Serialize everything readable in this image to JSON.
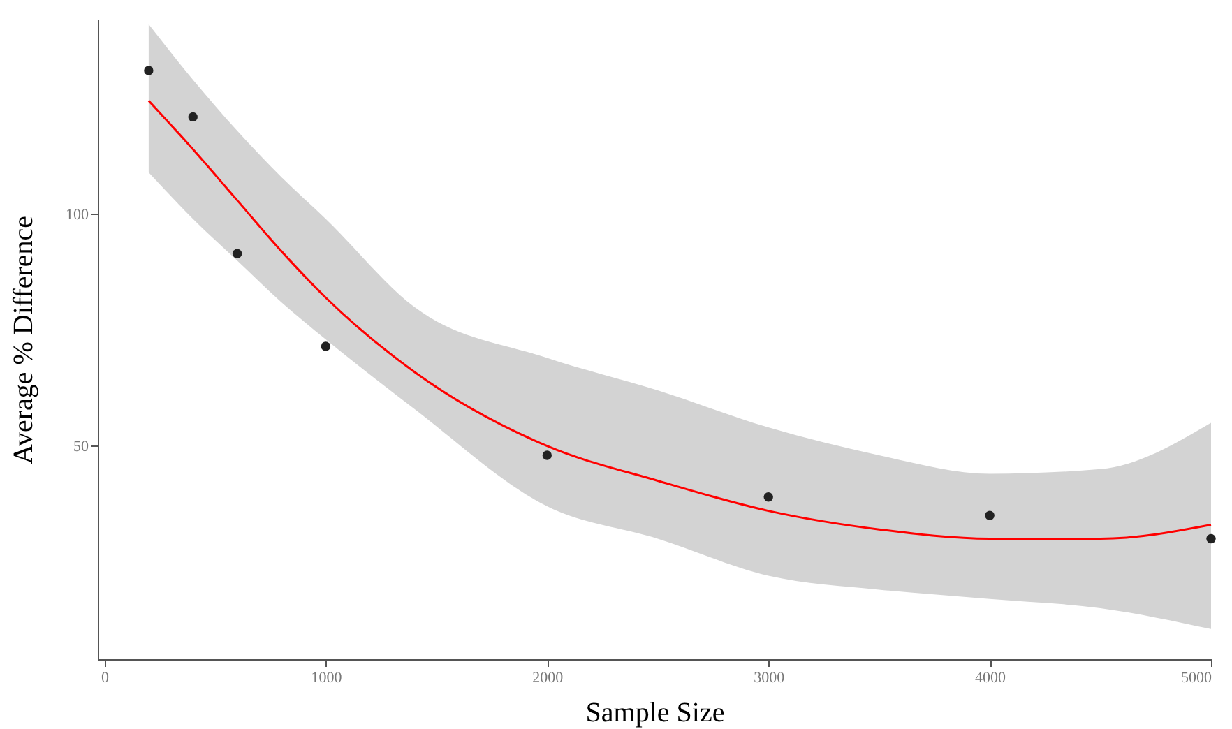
{
  "chart_data": {
    "type": "scatter",
    "xlabel": "Sample Size",
    "ylabel": "Average % Difference",
    "xlim": [
      -30,
      5000
    ],
    "xticks": [
      0,
      1000,
      2000,
      3000,
      4000,
      5000
    ],
    "ylim": [
      4,
      142
    ],
    "yticks": [
      50,
      100
    ],
    "grid": false,
    "series": [
      {
        "type": "line",
        "color": "#ff0000",
        "x": [
          200,
          400,
          600,
          800,
          1000,
          1400,
          2000,
          2500,
          3000,
          3500,
          4000,
          4500,
          5000
        ],
        "values": [
          124.5,
          114,
          103,
          92,
          82,
          66,
          50,
          42.5,
          36,
          32,
          30,
          30,
          33
        ],
        "lower": [
          109,
          99,
          90,
          81,
          73,
          58,
          37,
          30,
          22,
          19,
          17,
          15,
          10.5
        ],
        "upper": [
          141,
          129,
          118,
          108,
          99,
          80,
          69,
          62,
          54,
          48,
          44,
          45,
          55
        ]
      },
      {
        "marker": "circle",
        "color": "#222222",
        "x": [
          200,
          400,
          600,
          1000,
          2000,
          3000,
          4000,
          5000
        ],
        "values": [
          131,
          121,
          91.5,
          71.5,
          48,
          39,
          35,
          30
        ]
      }
    ]
  }
}
